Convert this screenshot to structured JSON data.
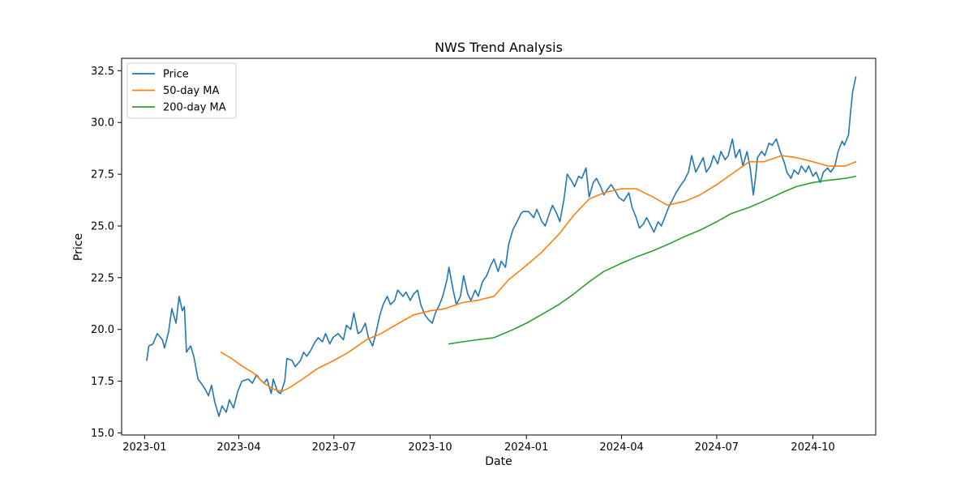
{
  "chart_data": {
    "type": "line",
    "title": "NWS Trend Analysis",
    "xlabel": "Date",
    "ylabel": "Price",
    "x_range": [
      "2022-12-10",
      "2024-11-30"
    ],
    "ylim": [
      14.9,
      33.1
    ],
    "x_ticks": [
      "2023-01",
      "2023-04",
      "2023-07",
      "2023-10",
      "2024-01",
      "2024-04",
      "2024-07",
      "2024-10"
    ],
    "x_tick_dates": [
      "2023-01-01",
      "2023-04-01",
      "2023-07-01",
      "2023-10-01",
      "2024-01-01",
      "2024-04-01",
      "2024-07-01",
      "2024-10-01"
    ],
    "y_ticks": [
      "15.0",
      "17.5",
      "20.0",
      "22.5",
      "25.0",
      "27.5",
      "30.0",
      "32.5"
    ],
    "y_tick_values": [
      15.0,
      17.5,
      20.0,
      22.5,
      25.0,
      27.5,
      30.0,
      32.5
    ],
    "grid": false,
    "legend_position": "upper-left",
    "series": [
      {
        "name": "Price",
        "color": "#1f77b4",
        "points": [
          [
            "2023-01-03",
            18.5
          ],
          [
            "2023-01-05",
            19.2
          ],
          [
            "2023-01-09",
            19.3
          ],
          [
            "2023-01-13",
            19.8
          ],
          [
            "2023-01-18",
            19.5
          ],
          [
            "2023-01-20",
            19.1
          ],
          [
            "2023-01-24",
            19.9
          ],
          [
            "2023-01-27",
            21.0
          ],
          [
            "2023-01-31",
            20.3
          ],
          [
            "2023-02-03",
            21.6
          ],
          [
            "2023-02-06",
            20.9
          ],
          [
            "2023-02-08",
            21.1
          ],
          [
            "2023-02-10",
            18.9
          ],
          [
            "2023-02-14",
            19.2
          ],
          [
            "2023-02-17",
            18.7
          ],
          [
            "2023-02-21",
            17.6
          ],
          [
            "2023-02-24",
            17.4
          ],
          [
            "2023-02-28",
            17.1
          ],
          [
            "2023-03-03",
            16.8
          ],
          [
            "2023-03-06",
            17.3
          ],
          [
            "2023-03-09",
            16.5
          ],
          [
            "2023-03-13",
            15.8
          ],
          [
            "2023-03-16",
            16.3
          ],
          [
            "2023-03-20",
            16.0
          ],
          [
            "2023-03-23",
            16.6
          ],
          [
            "2023-03-27",
            16.2
          ],
          [
            "2023-03-31",
            17.0
          ],
          [
            "2023-04-04",
            17.5
          ],
          [
            "2023-04-10",
            17.6
          ],
          [
            "2023-04-14",
            17.4
          ],
          [
            "2023-04-18",
            17.8
          ],
          [
            "2023-04-21",
            17.6
          ],
          [
            "2023-04-25",
            17.4
          ],
          [
            "2023-04-28",
            17.6
          ],
          [
            "2023-05-02",
            16.9
          ],
          [
            "2023-05-04",
            17.6
          ],
          [
            "2023-05-08",
            17.0
          ],
          [
            "2023-05-11",
            16.9
          ],
          [
            "2023-05-15",
            17.5
          ],
          [
            "2023-05-17",
            18.6
          ],
          [
            "2023-05-22",
            18.5
          ],
          [
            "2023-05-25",
            18.2
          ],
          [
            "2023-05-30",
            18.5
          ],
          [
            "2023-06-02",
            18.9
          ],
          [
            "2023-06-05",
            18.7
          ],
          [
            "2023-06-09",
            19.0
          ],
          [
            "2023-06-13",
            19.4
          ],
          [
            "2023-06-16",
            19.6
          ],
          [
            "2023-06-20",
            19.4
          ],
          [
            "2023-06-23",
            19.8
          ],
          [
            "2023-06-27",
            19.3
          ],
          [
            "2023-06-30",
            19.6
          ],
          [
            "2023-07-05",
            19.8
          ],
          [
            "2023-07-10",
            19.5
          ],
          [
            "2023-07-13",
            20.2
          ],
          [
            "2023-07-17",
            20.0
          ],
          [
            "2023-07-20",
            20.8
          ],
          [
            "2023-07-24",
            19.8
          ],
          [
            "2023-07-27",
            19.9
          ],
          [
            "2023-07-31",
            20.3
          ],
          [
            "2023-08-03",
            19.6
          ],
          [
            "2023-08-07",
            19.2
          ],
          [
            "2023-08-10",
            19.8
          ],
          [
            "2023-08-14",
            20.7
          ],
          [
            "2023-08-17",
            21.2
          ],
          [
            "2023-08-21",
            21.6
          ],
          [
            "2023-08-24",
            21.2
          ],
          [
            "2023-08-28",
            21.4
          ],
          [
            "2023-08-31",
            21.9
          ],
          [
            "2023-09-05",
            21.6
          ],
          [
            "2023-09-08",
            21.8
          ],
          [
            "2023-09-12",
            21.4
          ],
          [
            "2023-09-15",
            21.7
          ],
          [
            "2023-09-19",
            21.9
          ],
          [
            "2023-09-22",
            21.2
          ],
          [
            "2023-09-26",
            20.7
          ],
          [
            "2023-09-29",
            20.5
          ],
          [
            "2023-10-03",
            20.3
          ],
          [
            "2023-10-06",
            20.8
          ],
          [
            "2023-10-10",
            21.2
          ],
          [
            "2023-10-13",
            21.6
          ],
          [
            "2023-10-17",
            22.4
          ],
          [
            "2023-10-19",
            23.0
          ],
          [
            "2023-10-23",
            21.9
          ],
          [
            "2023-10-26",
            21.2
          ],
          [
            "2023-10-30",
            21.6
          ],
          [
            "2023-11-02",
            22.6
          ],
          [
            "2023-11-06",
            21.7
          ],
          [
            "2023-11-09",
            21.4
          ],
          [
            "2023-11-13",
            21.9
          ],
          [
            "2023-11-16",
            21.6
          ],
          [
            "2023-11-20",
            22.3
          ],
          [
            "2023-11-24",
            22.6
          ],
          [
            "2023-11-28",
            23.1
          ],
          [
            "2023-12-01",
            23.4
          ],
          [
            "2023-12-05",
            22.8
          ],
          [
            "2023-12-08",
            23.3
          ],
          [
            "2023-12-12",
            23.0
          ],
          [
            "2023-12-15",
            24.1
          ],
          [
            "2023-12-19",
            24.8
          ],
          [
            "2023-12-22",
            25.1
          ],
          [
            "2023-12-27",
            25.6
          ],
          [
            "2023-12-29",
            25.7
          ],
          [
            "2024-01-03",
            25.7
          ],
          [
            "2024-01-08",
            25.4
          ],
          [
            "2024-01-11",
            25.8
          ],
          [
            "2024-01-16",
            25.2
          ],
          [
            "2024-01-19",
            25.0
          ],
          [
            "2024-01-23",
            25.6
          ],
          [
            "2024-01-26",
            26.0
          ],
          [
            "2024-01-30",
            25.6
          ],
          [
            "2024-02-02",
            25.2
          ],
          [
            "2024-02-06",
            26.3
          ],
          [
            "2024-02-09",
            27.5
          ],
          [
            "2024-02-13",
            27.2
          ],
          [
            "2024-02-16",
            26.9
          ],
          [
            "2024-02-20",
            27.4
          ],
          [
            "2024-02-23",
            27.3
          ],
          [
            "2024-02-27",
            27.8
          ],
          [
            "2024-03-01",
            26.4
          ],
          [
            "2024-03-05",
            27.1
          ],
          [
            "2024-03-08",
            27.3
          ],
          [
            "2024-03-12",
            26.9
          ],
          [
            "2024-03-15",
            26.5
          ],
          [
            "2024-03-19",
            26.8
          ],
          [
            "2024-03-22",
            27.0
          ],
          [
            "2024-03-26",
            26.7
          ],
          [
            "2024-03-29",
            26.4
          ],
          [
            "2024-04-03",
            26.2
          ],
          [
            "2024-04-08",
            26.6
          ],
          [
            "2024-04-11",
            25.9
          ],
          [
            "2024-04-15",
            25.4
          ],
          [
            "2024-04-18",
            24.9
          ],
          [
            "2024-04-22",
            25.1
          ],
          [
            "2024-04-25",
            25.4
          ],
          [
            "2024-04-29",
            25.0
          ],
          [
            "2024-05-02",
            24.7
          ],
          [
            "2024-05-06",
            25.2
          ],
          [
            "2024-05-09",
            25.0
          ],
          [
            "2024-05-13",
            25.5
          ],
          [
            "2024-05-16",
            25.9
          ],
          [
            "2024-05-20",
            26.3
          ],
          [
            "2024-05-23",
            26.6
          ],
          [
            "2024-05-28",
            27.0
          ],
          [
            "2024-05-31",
            27.2
          ],
          [
            "2024-06-04",
            27.6
          ],
          [
            "2024-06-07",
            28.4
          ],
          [
            "2024-06-11",
            27.6
          ],
          [
            "2024-06-14",
            27.9
          ],
          [
            "2024-06-18",
            28.3
          ],
          [
            "2024-06-21",
            27.6
          ],
          [
            "2024-06-25",
            27.9
          ],
          [
            "2024-06-28",
            28.4
          ],
          [
            "2024-07-02",
            28.0
          ],
          [
            "2024-07-05",
            28.6
          ],
          [
            "2024-07-09",
            28.2
          ],
          [
            "2024-07-12",
            28.4
          ],
          [
            "2024-07-16",
            29.2
          ],
          [
            "2024-07-19",
            28.3
          ],
          [
            "2024-07-23",
            28.7
          ],
          [
            "2024-07-26",
            27.9
          ],
          [
            "2024-07-30",
            28.6
          ],
          [
            "2024-08-02",
            27.8
          ],
          [
            "2024-08-05",
            26.5
          ],
          [
            "2024-08-07",
            27.3
          ],
          [
            "2024-08-09",
            28.3
          ],
          [
            "2024-08-13",
            28.6
          ],
          [
            "2024-08-16",
            28.4
          ],
          [
            "2024-08-20",
            29.0
          ],
          [
            "2024-08-23",
            28.9
          ],
          [
            "2024-08-27",
            29.2
          ],
          [
            "2024-08-30",
            28.7
          ],
          [
            "2024-09-04",
            28.0
          ],
          [
            "2024-09-06",
            27.6
          ],
          [
            "2024-09-10",
            27.3
          ],
          [
            "2024-09-13",
            27.7
          ],
          [
            "2024-09-17",
            27.5
          ],
          [
            "2024-09-20",
            27.9
          ],
          [
            "2024-09-24",
            27.6
          ],
          [
            "2024-09-27",
            27.9
          ],
          [
            "2024-10-01",
            27.4
          ],
          [
            "2024-10-04",
            27.6
          ],
          [
            "2024-10-08",
            27.1
          ],
          [
            "2024-10-11",
            27.6
          ],
          [
            "2024-10-15",
            27.8
          ],
          [
            "2024-10-18",
            27.6
          ],
          [
            "2024-10-22",
            27.9
          ],
          [
            "2024-10-25",
            28.6
          ],
          [
            "2024-10-29",
            29.1
          ],
          [
            "2024-10-31",
            28.9
          ],
          [
            "2024-11-04",
            29.4
          ],
          [
            "2024-11-06",
            30.5
          ],
          [
            "2024-11-08",
            31.5
          ],
          [
            "2024-11-11",
            32.2
          ]
        ]
      },
      {
        "name": "50-day MA",
        "color": "#ff7f0e",
        "points": [
          [
            "2023-03-15",
            18.9
          ],
          [
            "2023-03-25",
            18.6
          ],
          [
            "2023-04-05",
            18.2
          ],
          [
            "2023-04-15",
            17.9
          ],
          [
            "2023-04-25",
            17.4
          ],
          [
            "2023-05-05",
            17.1
          ],
          [
            "2023-05-12",
            17.0
          ],
          [
            "2023-05-20",
            17.2
          ],
          [
            "2023-06-01",
            17.6
          ],
          [
            "2023-06-15",
            18.1
          ],
          [
            "2023-07-01",
            18.5
          ],
          [
            "2023-07-15",
            18.9
          ],
          [
            "2023-08-01",
            19.5
          ],
          [
            "2023-08-15",
            19.8
          ],
          [
            "2023-09-01",
            20.3
          ],
          [
            "2023-09-15",
            20.7
          ],
          [
            "2023-10-01",
            20.9
          ],
          [
            "2023-10-15",
            21.0
          ],
          [
            "2023-11-01",
            21.3
          ],
          [
            "2023-11-15",
            21.4
          ],
          [
            "2023-12-01",
            21.6
          ],
          [
            "2023-12-15",
            22.4
          ],
          [
            "2024-01-01",
            23.1
          ],
          [
            "2024-01-15",
            23.7
          ],
          [
            "2024-02-01",
            24.6
          ],
          [
            "2024-02-15",
            25.5
          ],
          [
            "2024-03-01",
            26.3
          ],
          [
            "2024-03-15",
            26.6
          ],
          [
            "2024-04-01",
            26.8
          ],
          [
            "2024-04-15",
            26.8
          ],
          [
            "2024-05-01",
            26.4
          ],
          [
            "2024-05-15",
            26.0
          ],
          [
            "2024-06-01",
            26.2
          ],
          [
            "2024-06-15",
            26.5
          ],
          [
            "2024-07-01",
            27.0
          ],
          [
            "2024-07-15",
            27.5
          ],
          [
            "2024-08-01",
            28.1
          ],
          [
            "2024-08-15",
            28.1
          ],
          [
            "2024-09-01",
            28.4
          ],
          [
            "2024-09-15",
            28.3
          ],
          [
            "2024-10-01",
            28.1
          ],
          [
            "2024-10-15",
            27.9
          ],
          [
            "2024-11-01",
            27.9
          ],
          [
            "2024-11-11",
            28.1
          ]
        ]
      },
      {
        "name": "200-day MA",
        "color": "#2ca02c",
        "points": [
          [
            "2023-10-19",
            19.3
          ],
          [
            "2023-11-01",
            19.4
          ],
          [
            "2023-11-15",
            19.5
          ],
          [
            "2023-12-01",
            19.6
          ],
          [
            "2023-12-15",
            19.9
          ],
          [
            "2024-01-01",
            20.3
          ],
          [
            "2024-01-15",
            20.7
          ],
          [
            "2024-02-01",
            21.2
          ],
          [
            "2024-02-15",
            21.7
          ],
          [
            "2024-03-01",
            22.3
          ],
          [
            "2024-03-15",
            22.8
          ],
          [
            "2024-04-01",
            23.2
          ],
          [
            "2024-04-15",
            23.5
          ],
          [
            "2024-05-01",
            23.8
          ],
          [
            "2024-05-15",
            24.1
          ],
          [
            "2024-06-01",
            24.5
          ],
          [
            "2024-06-15",
            24.8
          ],
          [
            "2024-07-01",
            25.2
          ],
          [
            "2024-07-15",
            25.6
          ],
          [
            "2024-08-01",
            25.9
          ],
          [
            "2024-08-15",
            26.2
          ],
          [
            "2024-09-01",
            26.6
          ],
          [
            "2024-09-15",
            26.9
          ],
          [
            "2024-10-01",
            27.1
          ],
          [
            "2024-10-15",
            27.2
          ],
          [
            "2024-11-01",
            27.3
          ],
          [
            "2024-11-11",
            27.4
          ]
        ]
      }
    ]
  }
}
